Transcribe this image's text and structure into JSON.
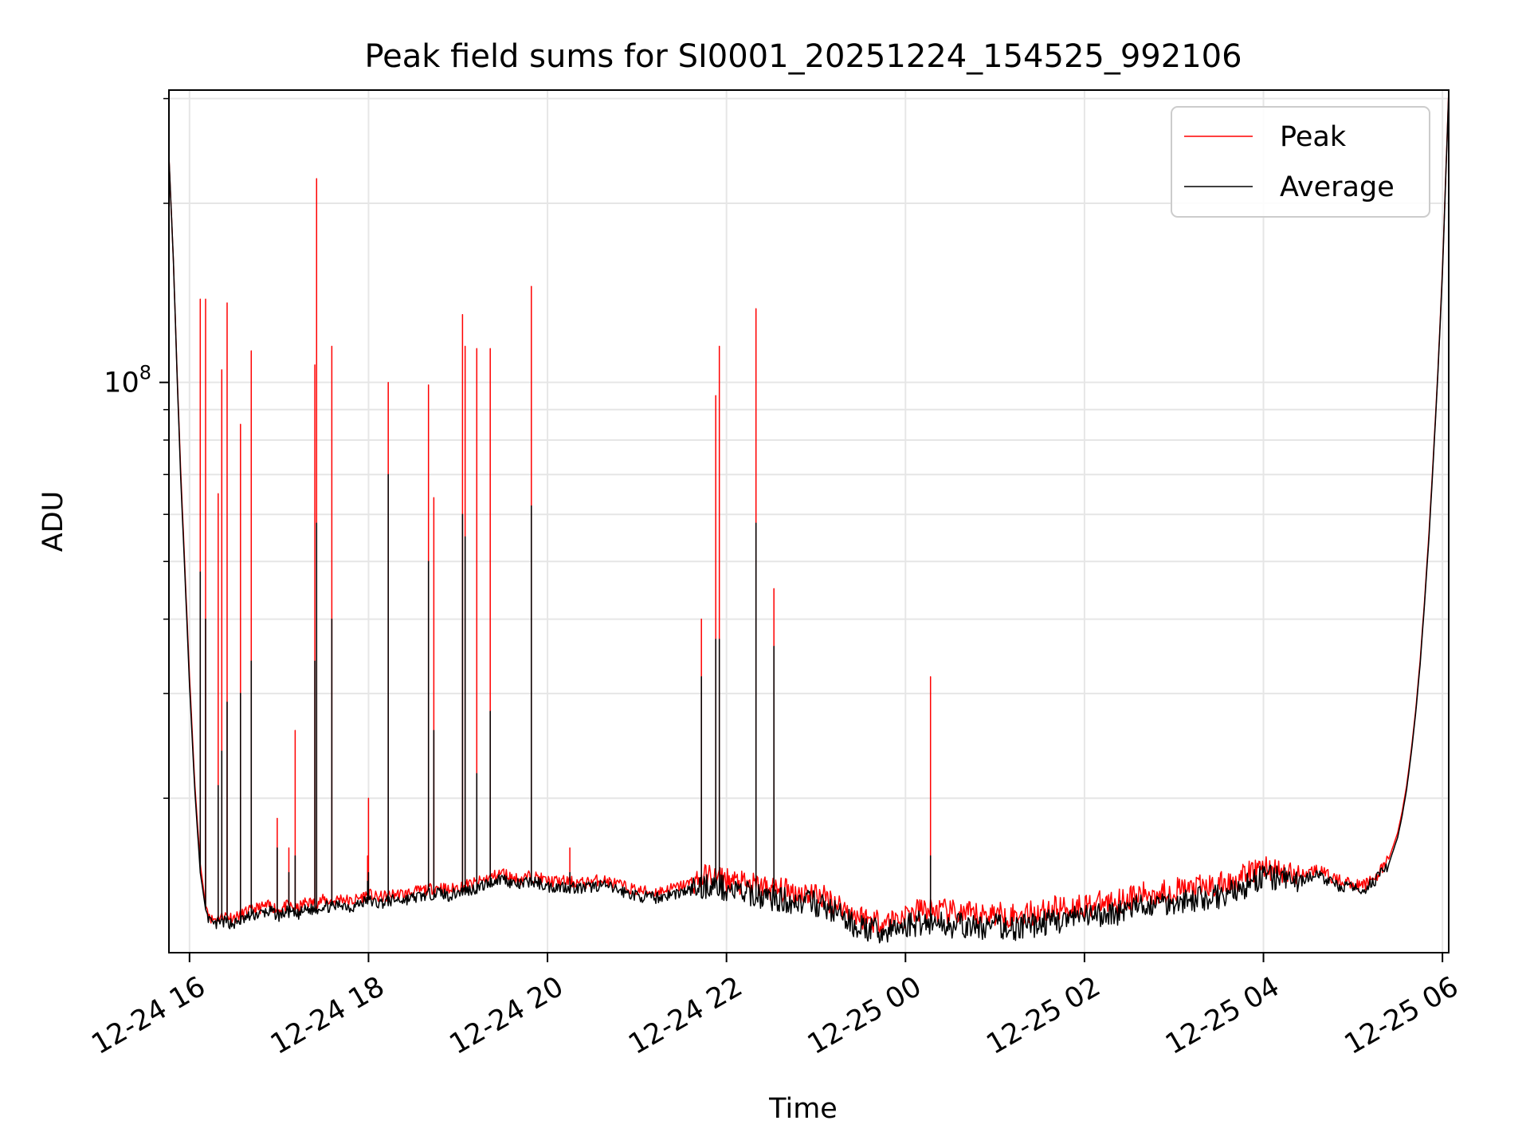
{
  "chart_data": {
    "type": "line",
    "title": "Peak field sums for SI0001_20251224_154525_992106",
    "xlabel": "Time",
    "ylabel": "ADU",
    "yscale": "log",
    "x_unit": "hours since 12-24 00:00",
    "xlim": [
      15.77,
      30.07
    ],
    "ylim": [
      11000000.0,
      310000000.0
    ],
    "grid": true,
    "legend_position": "top-right",
    "x_ticks": [
      {
        "value": 16,
        "label": "12-24 16"
      },
      {
        "value": 18,
        "label": "12-24 18"
      },
      {
        "value": 20,
        "label": "12-24 20"
      },
      {
        "value": 22,
        "label": "12-24 22"
      },
      {
        "value": 24,
        "label": "12-25 00"
      },
      {
        "value": 26,
        "label": "12-25 02"
      },
      {
        "value": 28,
        "label": "12-25 04"
      },
      {
        "value": 30,
        "label": "12-25 06"
      }
    ],
    "y_major_ticks": [
      {
        "value": 100000000,
        "base": "10",
        "exp": "8"
      }
    ],
    "y_minor_ticks": [
      20000000,
      30000000,
      40000000,
      50000000,
      60000000,
      70000000,
      80000000,
      90000000,
      200000000,
      300000000
    ],
    "series": [
      {
        "name": "Peak",
        "color": "#ff0000",
        "x": [
          15.77,
          15.82,
          15.86,
          15.9,
          15.95,
          16.0,
          16.06,
          16.12,
          16.18,
          16.25,
          16.32,
          16.4,
          16.5,
          16.6,
          16.7,
          16.8,
          16.9,
          17.0,
          17.1,
          17.2,
          17.3,
          17.4,
          17.5,
          17.6,
          17.7,
          17.8,
          17.9,
          18.0,
          18.1,
          18.2,
          18.3,
          18.4,
          18.5,
          18.6,
          18.7,
          18.8,
          18.9,
          19.0,
          19.1,
          19.2,
          19.3,
          19.4,
          19.5,
          19.6,
          19.7,
          19.8,
          19.9,
          20.0,
          20.2,
          20.4,
          20.6,
          20.8,
          21.0,
          21.2,
          21.4,
          21.6,
          21.8,
          22.0,
          22.2,
          22.4,
          22.6,
          22.8,
          23.0,
          23.2,
          23.4,
          23.6,
          23.8,
          24.0,
          24.2,
          24.4,
          24.6,
          24.8,
          25.0,
          25.2,
          25.4,
          25.6,
          25.8,
          26.0,
          26.2,
          26.4,
          26.6,
          26.8,
          27.0,
          27.2,
          27.4,
          27.6,
          27.8,
          28.0,
          28.2,
          28.4,
          28.6,
          28.8,
          29.0,
          29.1,
          29.2,
          29.3,
          29.4,
          29.5,
          29.55,
          29.6,
          29.65,
          29.7,
          29.75,
          29.8,
          29.85,
          29.9,
          29.95,
          30.0,
          30.04,
          30.07
        ],
        "y": [
          240000000.0,
          160000000.0,
          105000000.0,
          72000000.0,
          48000000.0,
          32000000.0,
          21000000.0,
          15500000.0,
          13200000.0,
          12500000.0,
          12600000.0,
          12700000.0,
          12600000.0,
          12800000.0,
          13000000.0,
          13100000.0,
          13200000.0,
          13000000.0,
          13200000.0,
          13000000.0,
          13400000.0,
          13300000.0,
          13500000.0,
          13400000.0,
          13600000.0,
          13400000.0,
          13600000.0,
          13800000.0,
          13600000.0,
          13700000.0,
          13800000.0,
          13800000.0,
          13900000.0,
          14000000.0,
          14100000.0,
          14200000.0,
          14000000.0,
          14200000.0,
          14300000.0,
          14400000.0,
          14600000.0,
          14800000.0,
          15000000.0,
          14700000.0,
          14600000.0,
          14800000.0,
          14700000.0,
          14500000.0,
          14500000.0,
          14400000.0,
          14600000.0,
          14300000.0,
          14000000.0,
          13900000.0,
          14100000.0,
          14400000.0,
          14800000.0,
          14600000.0,
          14300000.0,
          14200000.0,
          14000000.0,
          13900000.0,
          13800000.0,
          13400000.0,
          12800000.0,
          12500000.0,
          12400000.0,
          12700000.0,
          13000000.0,
          12900000.0,
          12800000.0,
          12700000.0,
          12800000.0,
          12700000.0,
          12800000.0,
          13000000.0,
          13100000.0,
          13200000.0,
          13300000.0,
          13500000.0,
          13700000.0,
          13900000.0,
          14000000.0,
          14100000.0,
          14200000.0,
          14400000.0,
          14800000.0,
          15400000.0,
          15000000.0,
          14800000.0,
          15200000.0,
          14600000.0,
          14400000.0,
          14200000.0,
          14600000.0,
          15000000.0,
          15800000.0,
          17500000.0,
          19000000.0,
          21000000.0,
          24000000.0,
          28000000.0,
          34000000.0,
          43000000.0,
          56000000.0,
          76000000.0,
          105000000.0,
          155000000.0,
          230000000.0,
          310000000.0
        ]
      },
      {
        "name": "Average",
        "color": "#000000",
        "x": [
          15.77,
          15.82,
          15.86,
          15.9,
          15.95,
          16.0,
          16.06,
          16.12,
          16.18,
          16.25,
          16.32,
          16.4,
          16.5,
          16.6,
          16.7,
          16.8,
          16.9,
          17.0,
          17.1,
          17.2,
          17.3,
          17.4,
          17.5,
          17.6,
          17.7,
          17.8,
          17.9,
          18.0,
          18.1,
          18.2,
          18.3,
          18.4,
          18.5,
          18.6,
          18.7,
          18.8,
          18.9,
          19.0,
          19.1,
          19.2,
          19.3,
          19.4,
          19.5,
          19.6,
          19.7,
          19.8,
          19.9,
          20.0,
          20.2,
          20.4,
          20.6,
          20.8,
          21.0,
          21.2,
          21.4,
          21.6,
          21.8,
          22.0,
          22.2,
          22.4,
          22.6,
          22.8,
          23.0,
          23.2,
          23.4,
          23.6,
          23.8,
          24.0,
          24.2,
          24.4,
          24.6,
          24.8,
          25.0,
          25.2,
          25.4,
          25.6,
          25.8,
          26.0,
          26.2,
          26.4,
          26.6,
          26.8,
          27.0,
          27.2,
          27.4,
          27.6,
          27.8,
          28.0,
          28.2,
          28.4,
          28.6,
          28.8,
          29.0,
          29.1,
          29.2,
          29.3,
          29.4,
          29.5,
          29.55,
          29.6,
          29.65,
          29.7,
          29.75,
          29.8,
          29.85,
          29.9,
          29.95,
          30.0,
          30.04,
          30.07
        ],
        "y": [
          240000000.0,
          160000000.0,
          104000000.0,
          70000000.0,
          47000000.0,
          31000000.0,
          20500000.0,
          15000000.0,
          13000000.0,
          12200000.0,
          12300000.0,
          12400000.0,
          12300000.0,
          12500000.0,
          12700000.0,
          12800000.0,
          12900000.0,
          12700000.0,
          12900000.0,
          12700000.0,
          13000000.0,
          13000000.0,
          13200000.0,
          13100000.0,
          13300000.0,
          13100000.0,
          13300000.0,
          13500000.0,
          13300000.0,
          13400000.0,
          13500000.0,
          13500000.0,
          13600000.0,
          13700000.0,
          13800000.0,
          13900000.0,
          13700000.0,
          13900000.0,
          14000000.0,
          14100000.0,
          14300000.0,
          14500000.0,
          14700000.0,
          14400000.0,
          14300000.0,
          14500000.0,
          14400000.0,
          14200000.0,
          14200000.0,
          14100000.0,
          14300000.0,
          14000000.0,
          13700000.0,
          13600000.0,
          13800000.0,
          14000000.0,
          14300000.0,
          14100000.0,
          13800000.0,
          13700000.0,
          13500000.0,
          13400000.0,
          13300000.0,
          12900000.0,
          12300000.0,
          12000000.0,
          11900000.0,
          12200000.0,
          12400000.0,
          12300000.0,
          12200000.0,
          12100000.0,
          12200000.0,
          12100000.0,
          12200000.0,
          12400000.0,
          12500000.0,
          12600000.0,
          12700000.0,
          12900000.0,
          13100000.0,
          13300000.0,
          13400000.0,
          13500000.0,
          13600000.0,
          13800000.0,
          14200000.0,
          14800000.0,
          14600000.0,
          14500000.0,
          14900000.0,
          14300000.0,
          14100000.0,
          14000000.0,
          14400000.0,
          14800000.0,
          15500000.0,
          17200000.0,
          18700000.0,
          20700000.0,
          23700000.0,
          27700000.0,
          33500000.0,
          42500000.0,
          55000000.0,
          75000000.0,
          104000000.0,
          153000000.0,
          228000000.0,
          308000000.0
        ]
      }
    ],
    "spikes": [
      {
        "x": 16.12,
        "peak": 138000000,
        "avg": 48000000
      },
      {
        "x": 16.18,
        "peak": 138000000,
        "avg": 40000000
      },
      {
        "x": 16.32,
        "peak": 65000000,
        "avg": 21000000
      },
      {
        "x": 16.36,
        "peak": 105000000,
        "avg": 24000000
      },
      {
        "x": 16.42,
        "peak": 136000000,
        "avg": 29000000
      },
      {
        "x": 16.57,
        "peak": 85000000,
        "avg": 30000000
      },
      {
        "x": 16.69,
        "peak": 113000000,
        "avg": 34000000
      },
      {
        "x": 16.98,
        "peak": 18500000,
        "avg": 16500000
      },
      {
        "x": 17.11,
        "peak": 16500000,
        "avg": 15000000
      },
      {
        "x": 17.18,
        "peak": 26000000,
        "avg": 16000000
      },
      {
        "x": 17.4,
        "peak": 107000000,
        "avg": 34000000
      },
      {
        "x": 17.42,
        "peak": 220000000,
        "avg": 58000000
      },
      {
        "x": 17.59,
        "peak": 115000000,
        "avg": 40000000
      },
      {
        "x": 17.99,
        "peak": 16000000,
        "avg": 14500000
      },
      {
        "x": 18.0,
        "peak": 20000000,
        "avg": 15000000
      },
      {
        "x": 18.22,
        "peak": 100000000,
        "avg": 70000000
      },
      {
        "x": 18.67,
        "peak": 99000000,
        "avg": 50000000
      },
      {
        "x": 18.73,
        "peak": 64000000,
        "avg": 26000000
      },
      {
        "x": 19.05,
        "peak": 130000000,
        "avg": 60000000
      },
      {
        "x": 19.08,
        "peak": 115000000,
        "avg": 55000000
      },
      {
        "x": 19.21,
        "peak": 114000000,
        "avg": 22000000
      },
      {
        "x": 19.36,
        "peak": 114000000,
        "avg": 28000000
      },
      {
        "x": 19.82,
        "peak": 145000000,
        "avg": 62000000
      },
      {
        "x": 20.25,
        "peak": 16500000,
        "avg": 15000000
      },
      {
        "x": 21.72,
        "peak": 40000000,
        "avg": 32000000
      },
      {
        "x": 21.88,
        "peak": 95000000,
        "avg": 37000000
      },
      {
        "x": 21.92,
        "peak": 115000000,
        "avg": 37000000
      },
      {
        "x": 22.33,
        "peak": 133000000,
        "avg": 58000000
      },
      {
        "x": 22.53,
        "peak": 45000000,
        "avg": 36000000
      },
      {
        "x": 24.28,
        "peak": 32000000,
        "avg": 16000000
      }
    ]
  }
}
